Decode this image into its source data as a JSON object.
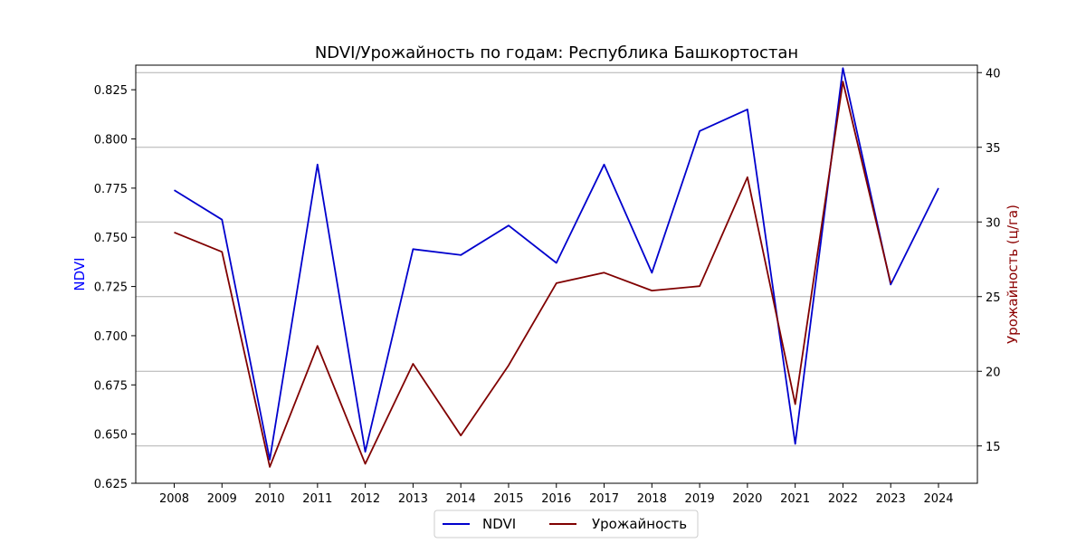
{
  "chart_data": {
    "type": "line",
    "title": "NDVI/Урожайность по годам: Республика Башкортостан",
    "categories": [
      "2008",
      "2009",
      "2010",
      "2011",
      "2012",
      "2013",
      "2014",
      "2015",
      "2016",
      "2017",
      "2018",
      "2019",
      "2020",
      "2021",
      "2022",
      "2023",
      "2024"
    ],
    "y_left": {
      "label": "NDVI",
      "ylim": [
        0.625,
        0.8375
      ],
      "ticks": [
        0.625,
        0.65,
        0.675,
        0.7,
        0.725,
        0.75,
        0.775,
        0.8,
        0.825
      ],
      "tick_labels": [
        "0.625",
        "0.650",
        "0.675",
        "0.700",
        "0.725",
        "0.750",
        "0.775",
        "0.800",
        "0.825"
      ],
      "color": "#0000ff"
    },
    "y_right": {
      "label": "Урожайность (ц/га)",
      "ylim": [
        12.5,
        40.5
      ],
      "ticks": [
        15,
        20,
        25,
        30,
        35,
        40
      ],
      "tick_labels": [
        "15",
        "20",
        "25",
        "30",
        "35",
        "40"
      ],
      "color": "#8b0000"
    },
    "grid": "horizontal (right axis)",
    "legend_position": "bottom-center",
    "series": [
      {
        "name": "NDVI",
        "axis": "left",
        "color": "#0000cd",
        "values": [
          0.774,
          0.759,
          0.637,
          0.787,
          0.641,
          0.744,
          0.741,
          0.756,
          0.737,
          0.787,
          0.732,
          0.804,
          0.815,
          0.645,
          0.836,
          0.726,
          0.775
        ]
      },
      {
        "name": "Урожайность",
        "axis": "right",
        "color": "#800000",
        "values": [
          29.3,
          28.0,
          13.6,
          21.7,
          13.8,
          20.5,
          15.7,
          20.4,
          25.9,
          26.6,
          25.4,
          25.7,
          33.0,
          17.8,
          39.4,
          25.9,
          null
        ]
      }
    ]
  }
}
